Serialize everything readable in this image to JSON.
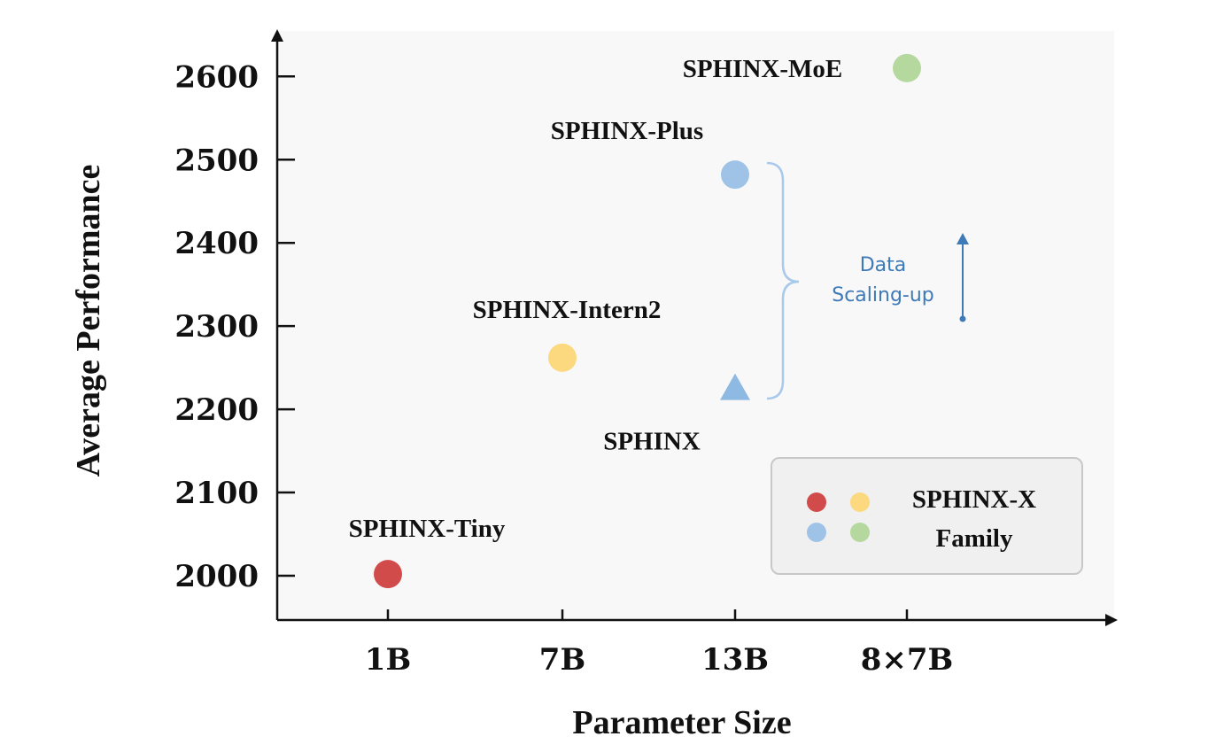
{
  "chart_data": {
    "type": "scatter",
    "xlabel": "Parameter Size",
    "ylabel": "Average Performance",
    "categories": [
      "1B",
      "7B",
      "13B",
      "8×7B"
    ],
    "yticks": [
      2000,
      2100,
      2200,
      2300,
      2400,
      2500,
      2600
    ],
    "ylim": [
      1950,
      2660
    ],
    "grid": false,
    "points": [
      {
        "label": "SPHINX-Tiny",
        "x": "1B",
        "y": 2002,
        "color": "#d24b4b",
        "marker": "circle"
      },
      {
        "label": "SPHINX-Intern2",
        "x": "7B",
        "y": 2262,
        "color": "#fcd97f",
        "marker": "circle"
      },
      {
        "label": "SPHINX",
        "x": "13B",
        "y": 2225,
        "color": "#8eb9e3",
        "marker": "triangle"
      },
      {
        "label": "SPHINX-Plus",
        "x": "13B",
        "y": 2482,
        "color": "#9fc3e7",
        "marker": "circle"
      },
      {
        "label": "SPHINX-MoE",
        "x": "8×7B",
        "y": 2610,
        "color": "#b5d89e",
        "marker": "circle"
      }
    ],
    "annotation": {
      "line1": "Data",
      "line2": "Scaling-up",
      "color": "#3f7ab8"
    },
    "legend": {
      "position": "bottom-right",
      "line1": "SPHINX-X",
      "line2": "Family",
      "colors": [
        "#d24b4b",
        "#fcd97f",
        "#9fc3e7",
        "#b5d89e"
      ]
    }
  }
}
